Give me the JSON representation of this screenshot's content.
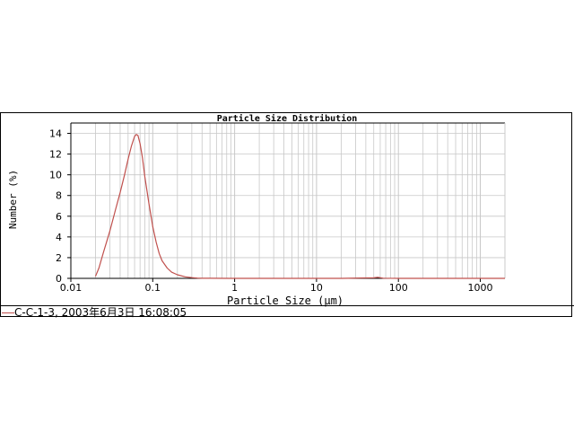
{
  "chart_data": {
    "type": "line",
    "title": "Particle Size Distribution",
    "xlabel": "Particle Size (μm)",
    "ylabel": "Number (%)",
    "xscale": "log",
    "xlim": [
      0.01,
      2000
    ],
    "ylim": [
      0,
      15
    ],
    "xticks": [
      {
        "value": 0.01,
        "label": "0.01"
      },
      {
        "value": 0.1,
        "label": "0.1"
      },
      {
        "value": 1,
        "label": "1"
      },
      {
        "value": 10,
        "label": "10"
      },
      {
        "value": 100,
        "label": "100"
      },
      {
        "value": 1000,
        "label": "1000"
      }
    ],
    "yticks": [
      0,
      2,
      4,
      6,
      8,
      10,
      12,
      14
    ],
    "grid": true,
    "legend_position": "bottom-left",
    "colors": {
      "series": "#c0504d",
      "grid": "#c8c8c8",
      "axis": "#000000"
    },
    "series": [
      {
        "name": "C-C-1-3, 2003年6月3日 16:08:05",
        "x": [
          0.02,
          0.022,
          0.025,
          0.03,
          0.035,
          0.04,
          0.045,
          0.05,
          0.055,
          0.06,
          0.063,
          0.066,
          0.07,
          0.075,
          0.08,
          0.09,
          0.1,
          0.11,
          0.12,
          0.13,
          0.15,
          0.17,
          0.2,
          0.25,
          0.3,
          0.35,
          0.4,
          0.5,
          1,
          2,
          5,
          10,
          20,
          50,
          56,
          65,
          100,
          200,
          500,
          1000,
          2000
        ],
        "y": [
          0.2,
          1.0,
          2.5,
          4.6,
          6.6,
          8.3,
          9.9,
          11.5,
          12.8,
          13.7,
          13.9,
          13.8,
          13.0,
          11.6,
          9.8,
          7.2,
          5.0,
          3.5,
          2.4,
          1.7,
          1.0,
          0.6,
          0.35,
          0.15,
          0.07,
          0.03,
          0.01,
          0.01,
          0.0,
          0.0,
          0.0,
          0.0,
          0.0,
          0.05,
          0.1,
          0.02,
          0.0,
          0.0,
          0.0,
          0.0,
          0.0
        ]
      }
    ]
  }
}
